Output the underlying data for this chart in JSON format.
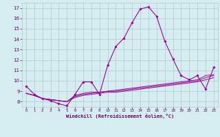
{
  "x": [
    0,
    1,
    2,
    3,
    4,
    5,
    6,
    7,
    8,
    9,
    10,
    11,
    12,
    13,
    14,
    15,
    16,
    17,
    18,
    19,
    20,
    21,
    22,
    23
  ],
  "line1": [
    9.5,
    8.7,
    8.3,
    8.1,
    7.8,
    7.6,
    8.7,
    9.9,
    9.9,
    8.7,
    11.5,
    13.3,
    14.1,
    15.6,
    16.9,
    17.1,
    16.2,
    13.8,
    12.1,
    10.5,
    10.1,
    10.5,
    9.2,
    11.3
  ],
  "line2": [
    8.8,
    8.6,
    8.3,
    8.2,
    8.1,
    8.0,
    8.6,
    8.8,
    8.9,
    8.9,
    9.0,
    9.1,
    9.2,
    9.3,
    9.4,
    9.5,
    9.6,
    9.7,
    9.8,
    9.9,
    10.0,
    10.1,
    10.5,
    10.6
  ],
  "line3": [
    8.8,
    8.6,
    8.3,
    8.2,
    8.1,
    8.0,
    8.5,
    8.7,
    8.8,
    8.9,
    9.0,
    9.0,
    9.1,
    9.2,
    9.3,
    9.4,
    9.5,
    9.6,
    9.7,
    9.8,
    9.9,
    10.0,
    10.3,
    10.5
  ],
  "line4": [
    8.8,
    8.6,
    8.3,
    8.2,
    8.1,
    8.0,
    8.4,
    8.6,
    8.7,
    8.8,
    8.9,
    8.9,
    9.0,
    9.1,
    9.2,
    9.3,
    9.4,
    9.5,
    9.6,
    9.7,
    9.8,
    9.9,
    10.1,
    10.3
  ],
  "line_color": "#990099",
  "bg_color": "#d5edf0",
  "grid_color": "#b0c8cc",
  "xlabel": "Windchill (Refroidissement éolien,°C)",
  "xlabel_color": "#660066",
  "tick_color": "#660066",
  "ylim": [
    7.5,
    17.5
  ],
  "xlim": [
    -0.5,
    23.5
  ],
  "yticks": [
    8,
    9,
    10,
    11,
    12,
    13,
    14,
    15,
    16,
    17
  ],
  "xticks": [
    0,
    1,
    2,
    3,
    4,
    5,
    6,
    7,
    8,
    9,
    10,
    11,
    12,
    13,
    14,
    15,
    16,
    17,
    18,
    19,
    20,
    21,
    22,
    23
  ]
}
